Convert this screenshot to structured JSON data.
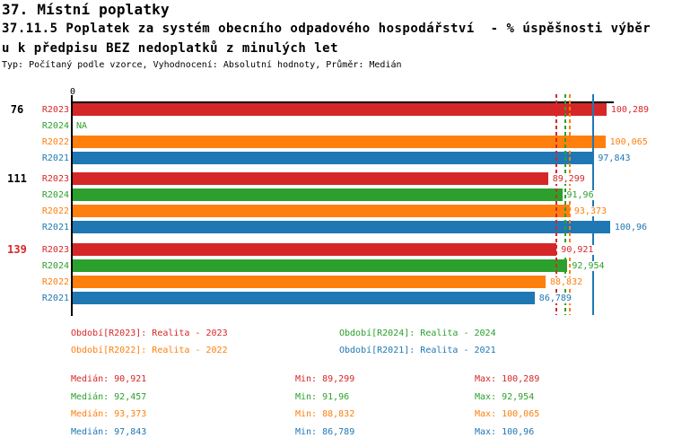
{
  "header": {
    "line1": "37. Místní poplatky",
    "line2": "37.11.5 Poplatek za systém obecního odpadového hospodářství  - % úspěšnosti výběr",
    "line3": "u k předpisu BEZ nedoplatků z minulých let",
    "meta": "Typ: Počítaný podle vzorce, Vyhodnocení: Absolutní hodnoty, Průměr: Medián"
  },
  "chart_data": {
    "type": "bar",
    "orientation": "horizontal",
    "unit": "%",
    "xlim": [
      0,
      102
    ],
    "axis_zero_label": "0",
    "grid": false,
    "na_text": "NA",
    "series_colors": {
      "R2023": "#d62728",
      "R2024": "#2ca02c",
      "R2022": "#ff7f0e",
      "R2021": "#1f77b4"
    },
    "groups": [
      {
        "label": "76",
        "label_color": "#000000",
        "bars": [
          {
            "series": "R2023",
            "value": 100.289,
            "display": "100,289"
          },
          {
            "series": "R2024",
            "value": null,
            "display": "NA"
          },
          {
            "series": "R2022",
            "value": 100.065,
            "display": "100,065"
          },
          {
            "series": "R2021",
            "value": 97.843,
            "display": "97,843"
          }
        ]
      },
      {
        "label": "111",
        "label_color": "#000000",
        "bars": [
          {
            "series": "R2023",
            "value": 89.299,
            "display": "89,299"
          },
          {
            "series": "R2024",
            "value": 91.96,
            "display": "91,96"
          },
          {
            "series": "R2022",
            "value": 93.373,
            "display": "93,373"
          },
          {
            "series": "R2021",
            "value": 100.96,
            "display": "100,96"
          }
        ]
      },
      {
        "label": "139",
        "label_color": "#d62728",
        "bars": [
          {
            "series": "R2023",
            "value": 90.921,
            "display": "90,921"
          },
          {
            "series": "R2024",
            "value": 92.954,
            "display": "92,954"
          },
          {
            "series": "R2022",
            "value": 88.832,
            "display": "88,832"
          },
          {
            "series": "R2021",
            "value": 86.789,
            "display": "86,789"
          }
        ]
      }
    ],
    "median_lines": [
      {
        "series": "R2023",
        "value": 90.921,
        "style": "dashed"
      },
      {
        "series": "R2024",
        "value": 92.457,
        "style": "dashed"
      },
      {
        "series": "R2022",
        "value": 93.373,
        "style": "dashed"
      },
      {
        "series": "R2021",
        "value": 97.843,
        "style": "solid"
      }
    ]
  },
  "legend": {
    "items": [
      {
        "label": "Období[R2023]: Realita - 2023",
        "color": "#d62728",
        "row": 0,
        "col": 0
      },
      {
        "label": "Období[R2024]: Realita - 2024",
        "color": "#2ca02c",
        "row": 0,
        "col": 1
      },
      {
        "label": "Období[R2022]: Realita - 2022",
        "color": "#ff7f0e",
        "row": 1,
        "col": 0
      },
      {
        "label": "Období[R2021]: Realita - 2021",
        "color": "#1f77b4",
        "row": 1,
        "col": 1
      }
    ]
  },
  "stats": {
    "labels": {
      "median": "Medián",
      "min": "Min",
      "max": "Max"
    },
    "rows": [
      {
        "series": "R2023",
        "color": "#d62728",
        "median": "90,921",
        "min": "89,299",
        "max": "100,289"
      },
      {
        "series": "R2024",
        "color": "#2ca02c",
        "median": "92,457",
        "min": "91,96",
        "max": "92,954"
      },
      {
        "series": "R2022",
        "color": "#ff7f0e",
        "median": "93,373",
        "min": "88,832",
        "max": "100,065"
      },
      {
        "series": "R2021",
        "color": "#1f77b4",
        "median": "97,843",
        "min": "86,789",
        "max": "100,96"
      }
    ]
  }
}
